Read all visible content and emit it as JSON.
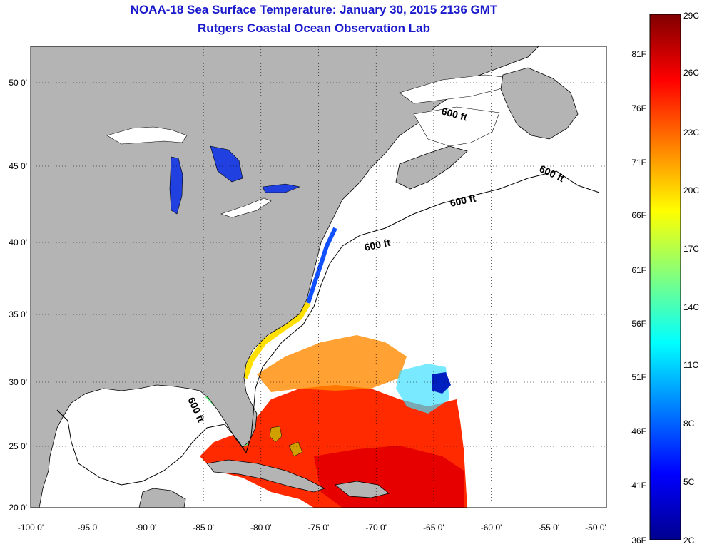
{
  "title": {
    "line1": "NOAA-18 Sea Surface Temperature:  January 30, 2015 2136 GMT",
    "line2": "Rutgers Coastal Ocean Observation Lab"
  },
  "map": {
    "lon_range": [
      -100,
      -50
    ],
    "lat_range": [
      20,
      52.5
    ],
    "lon_ticks": [
      "-100 0'",
      "-95 0'",
      "-90 0'",
      "-85 0'",
      "-80 0'",
      "-75 0'",
      "-70 0'",
      "-65 0'",
      "-60 0'",
      "-55 0'",
      "-50 0'"
    ],
    "lat_ticks": [
      "50 0'",
      "45 0'",
      "40 0'",
      "35 0'",
      "30 0'",
      "25 0'",
      "20 0'"
    ],
    "contour_label": "600 ft",
    "colors": {
      "land": "#b4b4b4",
      "ocean_no_data": "#ffffff",
      "title": "#1a1acc"
    }
  },
  "colorbar": {
    "celsius_labels": [
      "29C",
      "26C",
      "23C",
      "20C",
      "17C",
      "14C",
      "11C",
      "8C",
      "5C",
      "2C"
    ],
    "fahrenheit_labels": [
      "81F",
      "76F",
      "71F",
      "66F",
      "61F",
      "56F",
      "51F",
      "46F",
      "41F",
      "36F"
    ],
    "range_celsius": [
      2,
      29
    ],
    "colormap": "jet"
  }
}
